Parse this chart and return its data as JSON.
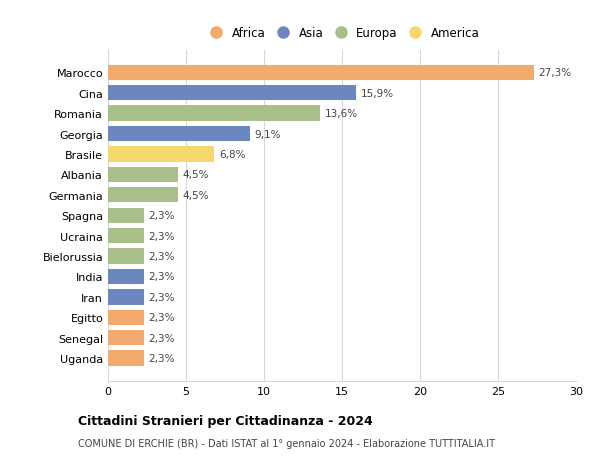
{
  "countries": [
    "Marocco",
    "Cina",
    "Romania",
    "Georgia",
    "Brasile",
    "Albania",
    "Germania",
    "Spagna",
    "Ucraina",
    "Bielorussia",
    "India",
    "Iran",
    "Egitto",
    "Senegal",
    "Uganda"
  ],
  "values": [
    27.3,
    15.9,
    13.6,
    9.1,
    6.8,
    4.5,
    4.5,
    2.3,
    2.3,
    2.3,
    2.3,
    2.3,
    2.3,
    2.3,
    2.3
  ],
  "labels": [
    "27,3%",
    "15,9%",
    "13,6%",
    "9,1%",
    "6,8%",
    "4,5%",
    "4,5%",
    "2,3%",
    "2,3%",
    "2,3%",
    "2,3%",
    "2,3%",
    "2,3%",
    "2,3%",
    "2,3%"
  ],
  "continents": [
    "Africa",
    "Asia",
    "Europa",
    "Asia",
    "America",
    "Europa",
    "Europa",
    "Europa",
    "Europa",
    "Europa",
    "Asia",
    "Asia",
    "Africa",
    "Africa",
    "Africa"
  ],
  "colors": {
    "Africa": "#F4A96D",
    "Asia": "#6B87C0",
    "Europa": "#A8BF8A",
    "America": "#F5D76E"
  },
  "legend_order": [
    "Africa",
    "Asia",
    "Europa",
    "America"
  ],
  "xlim": [
    0,
    30
  ],
  "xticks": [
    0,
    5,
    10,
    15,
    20,
    25,
    30
  ],
  "title": "Cittadini Stranieri per Cittadinanza - 2024",
  "subtitle": "COMUNE DI ERCHIE (BR) - Dati ISTAT al 1° gennaio 2024 - Elaborazione TUTTITALIA.IT",
  "bg_color": "#ffffff",
  "grid_color": "#d8d8d8"
}
